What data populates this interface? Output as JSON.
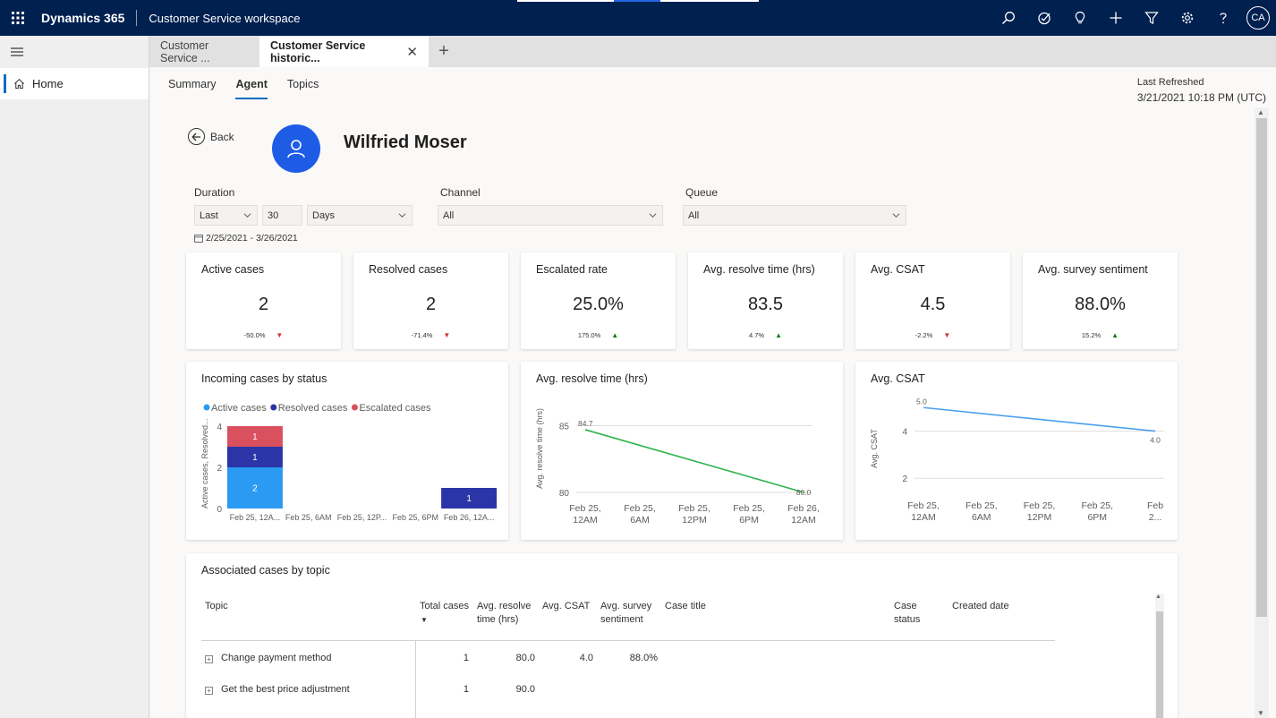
{
  "topbar": {
    "brand": "Dynamics 365",
    "app_name": "Customer Service workspace",
    "icons": [
      "search-icon",
      "task-icon",
      "lightbulb-icon",
      "plus-icon",
      "filter-icon",
      "gear-icon",
      "help-icon"
    ],
    "user_initials": "CA"
  },
  "leftnav": {
    "home_label": "Home"
  },
  "session_tabs": {
    "tab1": "Customer Service ...",
    "tab2": "Customer Service historic...",
    "new_tab": "+"
  },
  "page_tabs": [
    "Summary",
    "Agent",
    "Topics"
  ],
  "last_refreshed": {
    "label": "Last Refreshed",
    "value": "3/21/2021 10:18 PM (UTC)"
  },
  "agent": {
    "back_label": "Back",
    "name": "Wilfried Moser"
  },
  "filters": {
    "duration_label": "Duration",
    "duration_mode": "Last",
    "duration_count": "30",
    "duration_unit": "Days",
    "channel_label": "Channel",
    "channel_value": "All",
    "queue_label": "Queue",
    "queue_value": "All",
    "date_range": "2/25/2021 - 3/26/2021"
  },
  "kpis": [
    {
      "title": "Active cases",
      "value": "2",
      "change": "-50.0%",
      "direction": "down"
    },
    {
      "title": "Resolved cases",
      "value": "2",
      "change": "-71.4%",
      "direction": "down"
    },
    {
      "title": "Escalated rate",
      "value": "25.0%",
      "change": "175.0%",
      "direction": "up"
    },
    {
      "title": "Avg. resolve time (hrs)",
      "value": "83.5",
      "change": "4.7%",
      "direction": "up"
    },
    {
      "title": "Avg. CSAT",
      "value": "4.5",
      "change": "-2.2%",
      "direction": "down"
    },
    {
      "title": "Avg. survey sentiment",
      "value": "88.0%",
      "change": "15.2%",
      "direction": "up"
    }
  ],
  "colors": {
    "active": "#2b9af3",
    "resolved": "#2b35a8",
    "escalated": "#d9505e",
    "line_green": "#2cb34a",
    "line_blue": "#4a9ff0",
    "accent": "#0f6cbd"
  },
  "chart_data": [
    {
      "type": "bar",
      "title": "Incoming cases by status",
      "stacked": true,
      "categories": [
        "Feb 25, 12A...",
        "Feb 25, 6AM",
        "Feb 25, 12P...",
        "Feb 25, 6PM",
        "Feb 26, 12A..."
      ],
      "series": [
        {
          "name": "Active cases",
          "values": [
            2,
            0,
            0,
            0,
            0
          ]
        },
        {
          "name": "Resolved cases",
          "values": [
            1,
            0,
            0,
            0,
            1
          ]
        },
        {
          "name": "Escalated cases",
          "values": [
            1,
            0,
            0,
            0,
            0
          ]
        }
      ],
      "ylabel": "Active cases, Resolved...",
      "ylim": [
        0,
        4
      ],
      "yticks": [
        "0",
        "2",
        "4"
      ],
      "legend": "top-left"
    },
    {
      "type": "line",
      "title": "Avg. resolve time (hrs)",
      "categories": [
        "Feb 25, 12AM",
        "Feb 25, 6AM",
        "Feb 25, 12PM",
        "Feb 25, 6PM",
        "Feb 26, 12AM"
      ],
      "points": [
        {
          "x": 0,
          "y": 84.7,
          "label": "84.7"
        },
        {
          "x": 4,
          "y": 80.0,
          "label": "80.0"
        }
      ],
      "ylabel": "Avg. resolve time (hrs)",
      "ylim": [
        80,
        85.5
      ],
      "yticks": [
        "80",
        "85"
      ]
    },
    {
      "type": "line",
      "title": "Avg. CSAT",
      "categories": [
        "Feb 25, 12AM",
        "Feb 25, 6AM",
        "Feb 25, 12PM",
        "Feb 25, 6PM",
        "Feb 2..."
      ],
      "points": [
        {
          "x": 0,
          "y": 5.0,
          "label": "5.0"
        },
        {
          "x": 4,
          "y": 4.0,
          "label": "4.0"
        }
      ],
      "ylabel": "Avg. CSAT",
      "ylim": [
        1.4,
        5.2
      ],
      "yticks": [
        "2",
        "4"
      ]
    }
  ],
  "table": {
    "title": "Associated cases by topic",
    "headers": {
      "topic": "Topic",
      "total_cases": "Total cases",
      "avg_resolve_1": "Avg. resolve",
      "avg_resolve_2": "time (hrs)",
      "avg_csat": "Avg. CSAT",
      "avg_sent_1": "Avg. survey",
      "avg_sent_2": "sentiment",
      "case_title": "Case title",
      "case_status_1": "Case",
      "case_status_2": "status",
      "created_date": "Created date"
    },
    "rows": [
      {
        "topic": "Change payment method",
        "total": "1",
        "resolve": "80.0",
        "csat": "4.0",
        "sentiment": "88.0%"
      },
      {
        "topic": "Get the best price adjustment",
        "total": "1",
        "resolve": "90.0",
        "csat": "",
        "sentiment": ""
      }
    ]
  }
}
